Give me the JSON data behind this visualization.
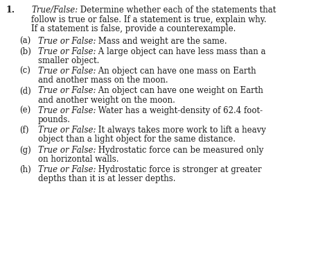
{
  "background_color": "#ffffff",
  "text_color": "#1a1a1a",
  "font_size": 8.5,
  "number_label": "1.",
  "header_italic": "True/False:",
  "header_line1": " Determine whether each of the statements that",
  "header_line2": "follow is true or false. If a statement is true, explain why.",
  "header_line3": "If a statement is false, provide a counterexample.",
  "items": [
    {
      "label": "(a)",
      "italic": "True or False:",
      "text1": " Mass and weight are the same.",
      "text2": ""
    },
    {
      "label": "(b)",
      "italic": "True or False:",
      "text1": " A large object can have less mass than a",
      "text2": "smaller object."
    },
    {
      "label": "(c)",
      "italic": "True or False:",
      "text1": " An object can have one mass on Earth",
      "text2": "and another mass on the moon."
    },
    {
      "label": "(d)",
      "italic": "True or False:",
      "text1": " An object can have one weight on Earth",
      "text2": "and another weight on the moon."
    },
    {
      "label": "(e)",
      "italic": "True or False:",
      "text1": " Water has a weight-density of 62.4 foot-",
      "text2": "pounds."
    },
    {
      "label": "(f)",
      "italic": "True or False:",
      "text1": " It always takes more work to lift a heavy",
      "text2": "object than a light object for the same distance."
    },
    {
      "label": "(g)",
      "italic": "True or False:",
      "text1": " Hydrostatic force can be measured only",
      "text2": "on horizontal walls."
    },
    {
      "label": "(h)",
      "italic": "True or False:",
      "text1": " Hydrostatic force is stronger at greater",
      "text2": "depths than it is at lesser depths."
    }
  ]
}
